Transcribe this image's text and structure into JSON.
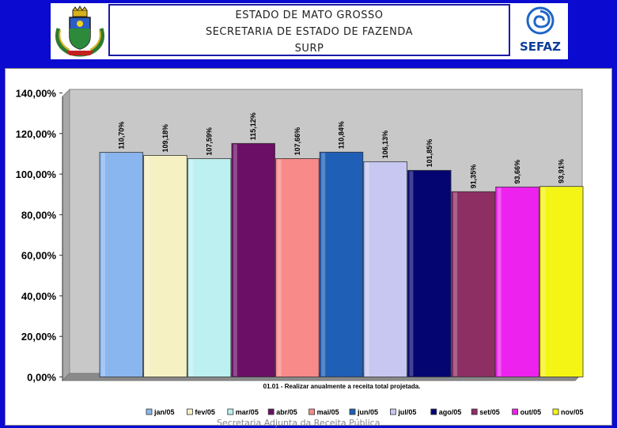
{
  "header": {
    "lines": [
      "ESTADO DE MATO GROSSO",
      "SECRETARIA DE ESTADO DE FAZENDA",
      "SURP"
    ],
    "logo_text": "SEFAZ"
  },
  "footer": {
    "caption": "Secretaria Adjunta da Receita Pública"
  },
  "colors": {
    "background": "#0a0ad0",
    "plot_area": "#c8c8c8"
  },
  "chart_data": {
    "type": "bar",
    "title": "",
    "xlabel": "01.01 - Realizar anualmente a receita total projetada.",
    "ylabel": "",
    "ylim": [
      0,
      140
    ],
    "yticks": [
      "0,00%",
      "20,00%",
      "40,00%",
      "60,00%",
      "80,00%",
      "100,00%",
      "120,00%",
      "140,00%"
    ],
    "grid": false,
    "legend_position": "bottom",
    "categories": [
      "jan/05",
      "fev/05",
      "mar/05",
      "abr/05",
      "mai/05",
      "jun/05",
      "jul/05",
      "ago/05",
      "set/05",
      "out/05",
      "nov/05"
    ],
    "series": [
      {
        "name": "jan/05",
        "value": 110.7,
        "label": "110,70%",
        "color": "#8ab6ef"
      },
      {
        "name": "fev/05",
        "value": 109.18,
        "label": "109,18%",
        "color": "#f6f1c3"
      },
      {
        "name": "mar/05",
        "value": 107.59,
        "label": "107,59%",
        "color": "#bdf0f0"
      },
      {
        "name": "abr/05",
        "value": 115.12,
        "label": "115,12%",
        "color": "#6b0f66"
      },
      {
        "name": "mai/05",
        "value": 107.66,
        "label": "107,66%",
        "color": "#f98a8a"
      },
      {
        "name": "jun/05",
        "value": 110.84,
        "label": "110,84%",
        "color": "#1f5fb6"
      },
      {
        "name": "jul/05",
        "value": 106.13,
        "label": "106,13%",
        "color": "#c7c7f1"
      },
      {
        "name": "ago/05",
        "value": 101.85,
        "label": "101,85%",
        "color": "#050572"
      },
      {
        "name": "set/05",
        "value": 91.35,
        "label": "91,35%",
        "color": "#8e2f64"
      },
      {
        "name": "out/05",
        "value": 93.66,
        "label": "93,66%",
        "color": "#ee22ee"
      },
      {
        "name": "nov/05",
        "value": 93.91,
        "label": "93,91%",
        "color": "#f5f515"
      }
    ]
  }
}
